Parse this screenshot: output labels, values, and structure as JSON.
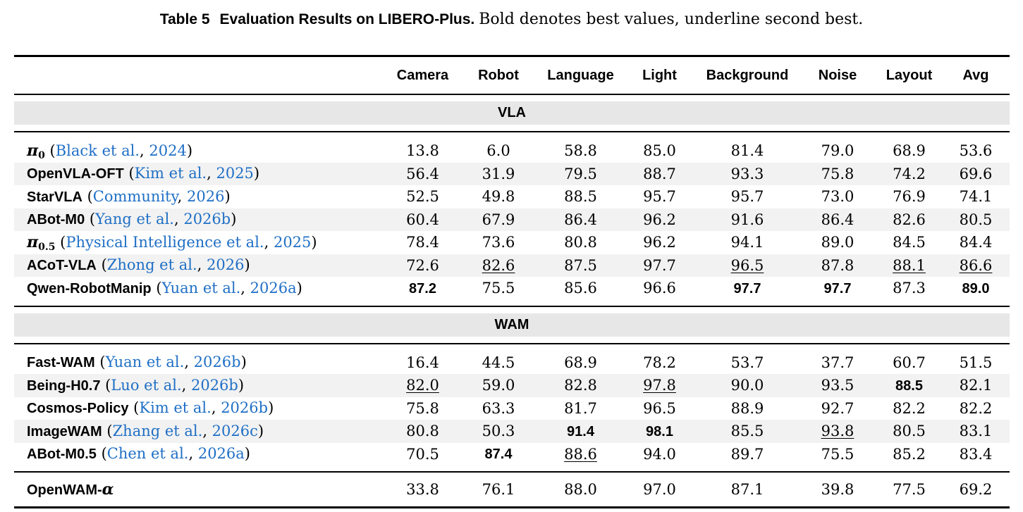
{
  "caption": {
    "label": "Table 5",
    "title": "Evaluation Results on LIBERO-Plus.",
    "text": "Bold denotes best values, underline second best."
  },
  "columns": [
    "Camera",
    "Robot",
    "Language",
    "Light",
    "Background",
    "Noise",
    "Layout",
    "Avg"
  ],
  "groups": [
    {
      "name": "VLA",
      "rows": [
        {
          "model": "π0",
          "cite_author": "Black et al.",
          "cite_year": "2024",
          "values": [
            "13.8",
            "6.0",
            "58.8",
            "85.0",
            "81.4",
            "79.0",
            "68.9",
            "53.6"
          ],
          "styles": [
            "",
            "",
            "",
            "",
            "",
            "",
            "",
            ""
          ]
        },
        {
          "model": "OpenVLA-OFT",
          "cite_author": "Kim et al.",
          "cite_year": "2025",
          "values": [
            "56.4",
            "31.9",
            "79.5",
            "88.7",
            "93.3",
            "75.8",
            "74.2",
            "69.6"
          ],
          "styles": [
            "",
            "",
            "",
            "",
            "",
            "",
            "",
            ""
          ]
        },
        {
          "model": "StarVLA",
          "cite_author": "Community",
          "cite_year": "2026",
          "values": [
            "52.5",
            "49.8",
            "88.5",
            "95.7",
            "95.7",
            "73.0",
            "76.9",
            "74.1"
          ],
          "styles": [
            "",
            "",
            "",
            "",
            "",
            "",
            "",
            ""
          ]
        },
        {
          "model": "ABot-M0",
          "cite_author": "Yang et al.",
          "cite_year": "2026b",
          "values": [
            "60.4",
            "67.9",
            "86.4",
            "96.2",
            "91.6",
            "86.4",
            "82.6",
            "80.5"
          ],
          "styles": [
            "",
            "",
            "",
            "",
            "",
            "",
            "",
            ""
          ]
        },
        {
          "model": "π0.5",
          "cite_author": "Physical Intelligence et al.",
          "cite_year": "2025",
          "values": [
            "78.4",
            "73.6",
            "80.8",
            "96.2",
            "94.1",
            "89.0",
            "84.5",
            "84.4"
          ],
          "styles": [
            "",
            "",
            "",
            "",
            "",
            "",
            "",
            ""
          ]
        },
        {
          "model": "ACoT-VLA",
          "cite_author": "Zhong et al.",
          "cite_year": "2026",
          "values": [
            "72.6",
            "82.6",
            "87.5",
            "97.7",
            "96.5",
            "87.8",
            "88.1",
            "86.6"
          ],
          "styles": [
            "",
            "u",
            "",
            "",
            "u",
            "",
            "u",
            "u"
          ]
        },
        {
          "model": "Qwen-RobotManip",
          "cite_author": "Yuan et al.",
          "cite_year": "2026a",
          "values": [
            "87.2",
            "75.5",
            "85.6",
            "96.6",
            "97.7",
            "97.7",
            "87.3",
            "89.0"
          ],
          "styles": [
            "b",
            "",
            "",
            "",
            "b",
            "b",
            "",
            "b"
          ]
        }
      ]
    },
    {
      "name": "WAM",
      "rows": [
        {
          "model": "Fast-WAM",
          "cite_author": "Yuan et al.",
          "cite_year": "2026b",
          "values": [
            "16.4",
            "44.5",
            "68.9",
            "78.2",
            "53.7",
            "37.7",
            "60.7",
            "51.5"
          ],
          "styles": [
            "",
            "",
            "",
            "",
            "",
            "",
            "",
            ""
          ]
        },
        {
          "model": "Being-H0.7",
          "cite_author": "Luo et al.",
          "cite_year": "2026b",
          "values": [
            "82.0",
            "59.0",
            "82.8",
            "97.8",
            "90.0",
            "93.5",
            "88.5",
            "82.1"
          ],
          "styles": [
            "u",
            "",
            "",
            "u",
            "",
            "",
            "b",
            ""
          ]
        },
        {
          "model": "Cosmos-Policy",
          "cite_author": "Kim et al.",
          "cite_year": "2026b",
          "values": [
            "75.8",
            "63.3",
            "81.7",
            "96.5",
            "88.9",
            "92.7",
            "82.2",
            "82.2"
          ],
          "styles": [
            "",
            "",
            "",
            "",
            "",
            "",
            "",
            ""
          ]
        },
        {
          "model": "ImageWAM",
          "cite_author": "Zhang et al.",
          "cite_year": "2026c",
          "values": [
            "80.8",
            "50.3",
            "91.4",
            "98.1",
            "85.5",
            "93.8",
            "80.5",
            "83.1"
          ],
          "styles": [
            "",
            "",
            "b",
            "b",
            "",
            "u",
            "",
            ""
          ]
        },
        {
          "model": "ABot-M0.5",
          "cite_author": "Chen et al.",
          "cite_year": "2026a",
          "values": [
            "70.5",
            "87.4",
            "88.6",
            "94.0",
            "89.7",
            "75.5",
            "85.2",
            "83.4"
          ],
          "styles": [
            "",
            "b",
            "u",
            "",
            "",
            "",
            "",
            ""
          ]
        }
      ]
    }
  ],
  "final_row": {
    "model": "OpenWAM-α",
    "values": [
      "33.8",
      "76.1",
      "88.0",
      "97.0",
      "87.1",
      "39.8",
      "77.5",
      "69.2"
    ]
  }
}
